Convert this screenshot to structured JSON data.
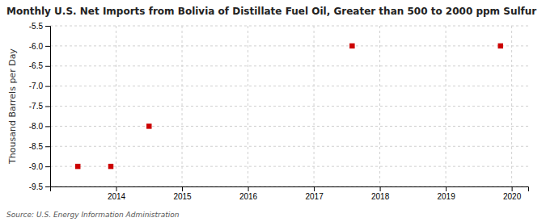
{
  "chart_data": {
    "type": "scatter",
    "title": "Monthly U.S. Net Imports from Bolivia of Distillate Fuel Oil, Greater than 500 to 2000 ppm Sulfur",
    "y_label": "Thousand Barrels per Day",
    "annotations": [
      "Source: U.S. Energy Information Administration"
    ],
    "x": [
      2013.42,
      2013.92,
      2014.5,
      2017.58,
      2019.83
    ],
    "values": [
      -9.0,
      -9.0,
      -8.0,
      -6.0,
      -6.0
    ],
    "color": "#cc0000",
    "marker": "square",
    "xlim": [
      2013.0,
      2020.25
    ],
    "ylim": [
      -9.5,
      -5.5
    ],
    "xticks": [
      2014,
      2015,
      2016,
      2017,
      2018,
      2019,
      2020
    ],
    "yticks": [
      -9.5,
      {
        "value": -9.0,
        "label": "-9.0"
      },
      -8.5,
      {
        "value": -8.0,
        "label": "-8.0"
      },
      -7.5,
      {
        "value": -7.0,
        "label": "-7.0"
      },
      -6.5,
      {
        "value": -6.0,
        "label": "-6.0"
      },
      -5.5
    ],
    "grid": true
  }
}
